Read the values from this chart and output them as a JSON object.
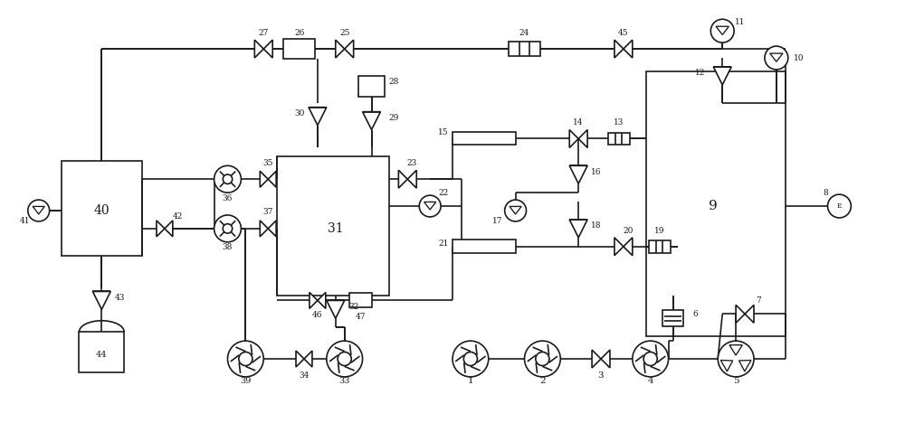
{
  "bg_color": "#ffffff",
  "line_color": "#1a1a1a",
  "line_width": 1.2,
  "fig_width": 10.0,
  "fig_height": 4.68,
  "dpi": 100
}
